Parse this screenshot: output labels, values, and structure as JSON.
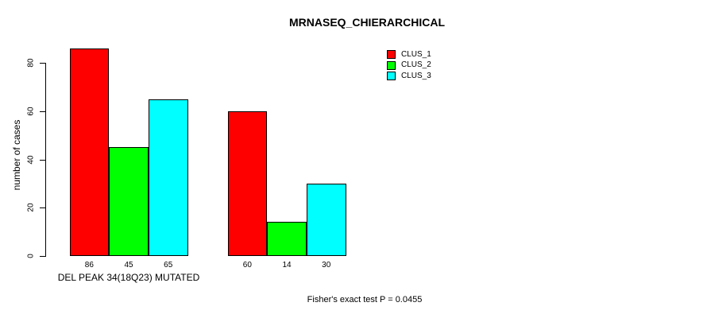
{
  "chart_data": {
    "type": "bar",
    "title": "MRNASEQ_CHIERARCHICAL",
    "ylabel": "number of cases",
    "xlabel": "",
    "ylim": [
      0,
      80
    ],
    "yticks": [
      0,
      20,
      40,
      60,
      80
    ],
    "grid": false,
    "legend_position": "top-right",
    "series": [
      {
        "name": "CLUS_1",
        "color": "#ff0000"
      },
      {
        "name": "CLUS_2",
        "color": "#00ff00"
      },
      {
        "name": "CLUS_3",
        "color": "#00ffff"
      }
    ],
    "groups": [
      {
        "label": "DEL PEAK 34(18Q23) MUTATED",
        "values": [
          86,
          45,
          65
        ]
      },
      {
        "label": "",
        "values": [
          60,
          14,
          30
        ]
      }
    ],
    "annotation": "Fisher's exact test P = 0.0455"
  },
  "colors": {
    "background": "#ffffff",
    "axis": "#000000",
    "text": "#000000",
    "bar_border": "#000000"
  }
}
